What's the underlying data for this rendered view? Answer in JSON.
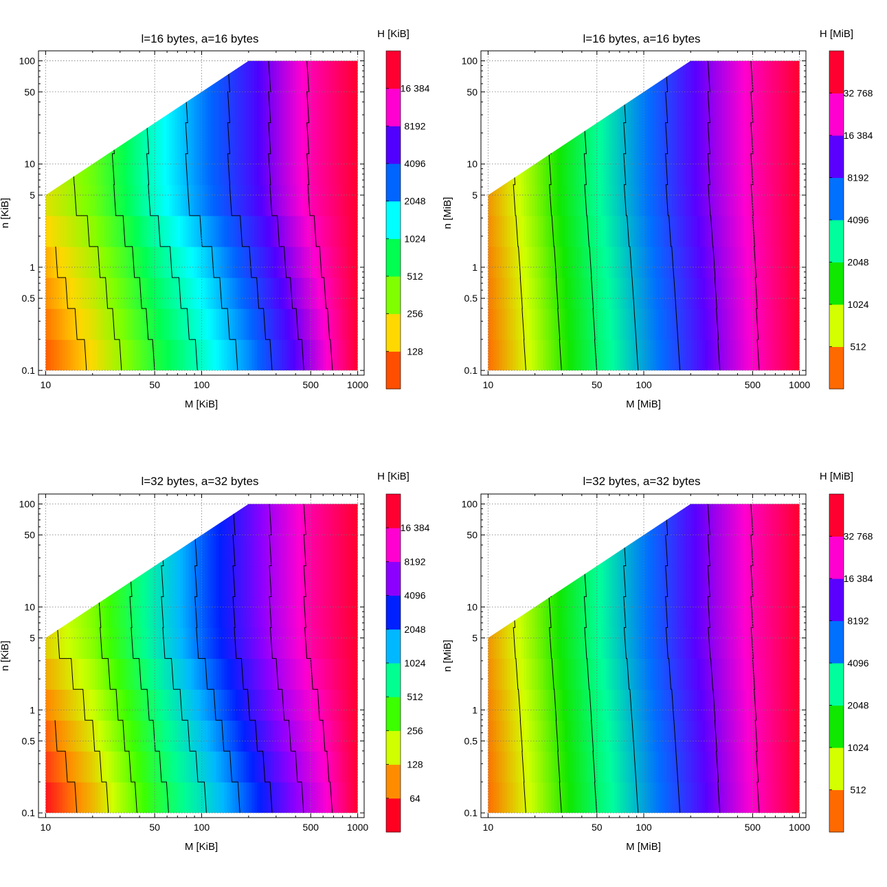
{
  "figure": {
    "description_free": true
  },
  "chart_data": [
    {
      "type": "heatmap",
      "title": "l=16 bytes, a=16 bytes",
      "xlabel": "M [KiB]",
      "ylabel": "n [KiB]",
      "xlim": [
        9,
        1100
      ],
      "ylim": [
        0.09,
        125
      ],
      "xscale": "log",
      "yscale": "log",
      "x_ticks": [
        10,
        50,
        100,
        500,
        1000
      ],
      "x_tick_labels": [
        "10",
        "50",
        "100",
        "500",
        "1000"
      ],
      "y_ticks": [
        0.1,
        0.5,
        1,
        5,
        10,
        50,
        100
      ],
      "y_tick_labels": [
        "0.1",
        "0.5",
        "1",
        "5",
        "10",
        "50",
        "100"
      ],
      "grid": true,
      "valid_region": "n <= M/2",
      "data_extent": {
        "x": [
          10,
          1000
        ],
        "y": [
          0.1,
          100
        ]
      },
      "colorbar": {
        "title": "H [KiB]",
        "ticks": [
          128,
          256,
          512,
          1024,
          2048,
          4096,
          8192,
          16384
        ],
        "tick_labels": [
          "128",
          "256",
          "512",
          "1024",
          "2048",
          "4096",
          "8192",
          "16 384"
        ],
        "colors": [
          "#ff4e00",
          "#ffd800",
          "#80ff00",
          "#00ff50",
          "#00ffff",
          "#0064ff",
          "#5000ff",
          "#ff00d0",
          "#ff0030"
        ]
      },
      "color_at": {
        "x_points": [
          10,
          20,
          50,
          100,
          200,
          500,
          1000
        ],
        "y_points": [
          0.1,
          1,
          5
        ],
        "values": [
          [
            0.0,
            0.12,
            0.33,
            0.45,
            0.58,
            0.8,
            1.0
          ],
          [
            0.08,
            0.2,
            0.4,
            0.52,
            0.66,
            0.86,
            1.0
          ],
          [
            0.16,
            0.27,
            0.47,
            0.6,
            0.72,
            0.9,
            1.0
          ]
        ]
      },
      "contour_levels": [
        128,
        256,
        512,
        1024,
        2048,
        4096,
        8192,
        16384
      ]
    },
    {
      "type": "heatmap",
      "title": "l=16 bytes, a=16 bytes",
      "xlabel": "M [MiB]",
      "ylabel": "n [MiB]",
      "xlim": [
        9,
        1100
      ],
      "ylim": [
        0.09,
        125
      ],
      "xscale": "log",
      "yscale": "log",
      "x_ticks": [
        10,
        50,
        100,
        500,
        1000
      ],
      "x_tick_labels": [
        "10",
        "50",
        "100",
        "500",
        "1000"
      ],
      "y_ticks": [
        0.1,
        0.5,
        1,
        5,
        10,
        50,
        100
      ],
      "y_tick_labels": [
        "0.1",
        "0.5",
        "1",
        "5",
        "10",
        "50",
        "100"
      ],
      "grid": true,
      "valid_region": "n <= M/2",
      "data_extent": {
        "x": [
          10,
          1000
        ],
        "y": [
          0.1,
          100
        ]
      },
      "colorbar": {
        "title": "H [MiB]",
        "ticks": [
          512,
          1024,
          2048,
          4096,
          8192,
          16384,
          32768
        ],
        "tick_labels": [
          "512",
          "1024",
          "2048",
          "4096",
          "8192",
          "16 384",
          "32 768"
        ],
        "colors": [
          "#ff6a00",
          "#d4ff00",
          "#10e800",
          "#00ff9c",
          "#0070ff",
          "#5a00ff",
          "#ff00d0",
          "#ff0030"
        ]
      },
      "color_at": {
        "x_points": [
          10,
          20,
          50,
          100,
          200,
          500,
          1000
        ],
        "y_points": [
          0.1,
          1,
          5
        ],
        "values": [
          [
            0.0,
            0.16,
            0.38,
            0.52,
            0.66,
            0.86,
            1.0
          ],
          [
            0.02,
            0.18,
            0.4,
            0.54,
            0.68,
            0.87,
            1.0
          ],
          [
            0.04,
            0.2,
            0.42,
            0.56,
            0.7,
            0.88,
            1.0
          ]
        ]
      },
      "contour_levels": [
        512,
        1024,
        2048,
        4096,
        8192,
        16384,
        32768
      ]
    },
    {
      "type": "heatmap",
      "title": "l=32 bytes, a=32 bytes",
      "xlabel": "M [KiB]",
      "ylabel": "n [KiB]",
      "xlim": [
        9,
        1100
      ],
      "ylim": [
        0.09,
        125
      ],
      "xscale": "log",
      "yscale": "log",
      "x_ticks": [
        10,
        50,
        100,
        500,
        1000
      ],
      "x_tick_labels": [
        "10",
        "50",
        "100",
        "500",
        "1000"
      ],
      "y_ticks": [
        0.1,
        0.5,
        1,
        5,
        10,
        50,
        100
      ],
      "y_tick_labels": [
        "0.1",
        "0.5",
        "1",
        "5",
        "10",
        "50",
        "100"
      ],
      "grid": true,
      "valid_region": "n <= M/2",
      "data_extent": {
        "x": [
          10,
          1000
        ],
        "y": [
          0.1,
          100
        ]
      },
      "colorbar": {
        "title": "H [KiB]",
        "ticks": [
          64,
          128,
          256,
          512,
          1024,
          2048,
          4096,
          8192,
          16384
        ],
        "tick_labels": [
          "64",
          "128",
          "256",
          "512",
          "1024",
          "2048",
          "4096",
          "8192",
          "16 384"
        ],
        "colors": [
          "#ff0020",
          "#ff8c00",
          "#d0ff00",
          "#3cff00",
          "#00ff90",
          "#00b8ff",
          "#0020ff",
          "#8c00ff",
          "#ff00d0",
          "#ff0030"
        ]
      },
      "color_at": {
        "x_points": [
          10,
          20,
          50,
          100,
          200,
          500,
          1000
        ],
        "y_points": [
          0.1,
          1,
          5
        ],
        "values": [
          [
            0.0,
            0.14,
            0.36,
            0.48,
            0.62,
            0.82,
            1.0
          ],
          [
            0.1,
            0.22,
            0.42,
            0.56,
            0.7,
            0.88,
            1.0
          ],
          [
            0.18,
            0.28,
            0.48,
            0.62,
            0.74,
            0.92,
            1.0
          ]
        ]
      },
      "contour_levels": [
        64,
        128,
        256,
        512,
        1024,
        2048,
        4096,
        8192,
        16384
      ]
    },
    {
      "type": "heatmap",
      "title": "l=32 bytes, a=32 bytes",
      "xlabel": "M [MiB]",
      "ylabel": "n [MiB]",
      "xlim": [
        9,
        1100
      ],
      "ylim": [
        0.09,
        125
      ],
      "xscale": "log",
      "yscale": "log",
      "x_ticks": [
        10,
        50,
        100,
        500,
        1000
      ],
      "x_tick_labels": [
        "10",
        "50",
        "100",
        "500",
        "1000"
      ],
      "y_ticks": [
        0.1,
        0.5,
        1,
        5,
        10,
        50,
        100
      ],
      "y_tick_labels": [
        "0.1",
        "0.5",
        "1",
        "5",
        "10",
        "50",
        "100"
      ],
      "grid": true,
      "valid_region": "n <= M/2",
      "data_extent": {
        "x": [
          10,
          1000
        ],
        "y": [
          0.1,
          100
        ]
      },
      "colorbar": {
        "title": "H [MiB]",
        "ticks": [
          512,
          1024,
          2048,
          4096,
          8192,
          16384,
          32768
        ],
        "tick_labels": [
          "512",
          "1024",
          "2048",
          "4096",
          "8192",
          "16 384",
          "32 768"
        ],
        "colors": [
          "#ff6a00",
          "#d4ff00",
          "#10e800",
          "#00ff9c",
          "#0070ff",
          "#5a00ff",
          "#ff00d0",
          "#ff0030"
        ]
      },
      "color_at": {
        "x_points": [
          10,
          20,
          50,
          100,
          200,
          500,
          1000
        ],
        "y_points": [
          0.1,
          1,
          5
        ],
        "values": [
          [
            0.0,
            0.16,
            0.38,
            0.52,
            0.66,
            0.86,
            1.0
          ],
          [
            0.02,
            0.18,
            0.4,
            0.54,
            0.68,
            0.87,
            1.0
          ],
          [
            0.04,
            0.2,
            0.42,
            0.56,
            0.7,
            0.88,
            1.0
          ]
        ]
      },
      "contour_levels": [
        512,
        1024,
        2048,
        4096,
        8192,
        16384,
        32768
      ]
    }
  ]
}
